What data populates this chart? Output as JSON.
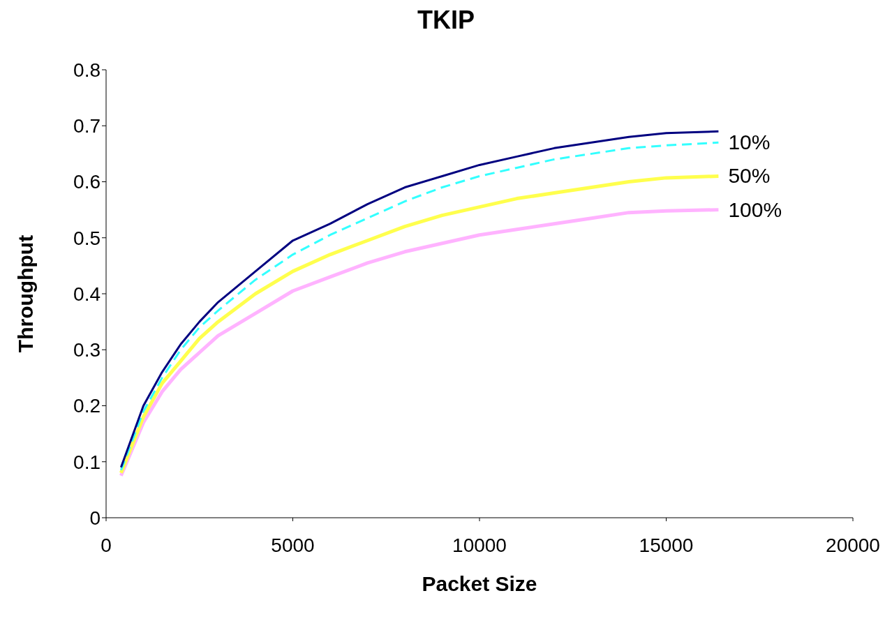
{
  "chart_data": {
    "type": "line",
    "title": "TKIP",
    "xlabel": "Packet Size",
    "ylabel": "Throughput",
    "x": [
      400,
      1000,
      1500,
      2000,
      2500,
      3000,
      4000,
      5000,
      6000,
      7000,
      8000,
      9000,
      10000,
      11000,
      12000,
      13000,
      14000,
      15000,
      16400
    ],
    "series": [
      {
        "color": "#000080",
        "line_style": "solid",
        "values": [
          0.09,
          0.2,
          0.26,
          0.31,
          0.35,
          0.385,
          0.44,
          0.495,
          0.525,
          0.56,
          0.59,
          0.61,
          0.63,
          0.645,
          0.66,
          0.67,
          0.68,
          0.687,
          0.69
        ]
      },
      {
        "name": "10%",
        "color": "#33ffff",
        "line_style": "dashed",
        "values": [
          0.085,
          0.19,
          0.25,
          0.3,
          0.34,
          0.37,
          0.425,
          0.47,
          0.505,
          0.535,
          0.565,
          0.59,
          0.61,
          0.625,
          0.64,
          0.65,
          0.66,
          0.665,
          0.67
        ]
      },
      {
        "name": "50%",
        "color": "#ffff4d",
        "line_style": "solid",
        "values": [
          0.08,
          0.18,
          0.24,
          0.28,
          0.32,
          0.35,
          0.4,
          0.44,
          0.47,
          0.495,
          0.52,
          0.54,
          0.555,
          0.57,
          0.58,
          0.59,
          0.6,
          0.607,
          0.61
        ]
      },
      {
        "name": "100%",
        "color": "#ffb3ff",
        "line_style": "solid",
        "values": [
          0.075,
          0.17,
          0.225,
          0.265,
          0.295,
          0.325,
          0.365,
          0.405,
          0.43,
          0.455,
          0.475,
          0.49,
          0.505,
          0.515,
          0.525,
          0.535,
          0.545,
          0.548,
          0.55
        ]
      }
    ],
    "xlim": [
      0,
      20000
    ],
    "xticks": [
      0,
      5000,
      10000,
      15000,
      20000
    ],
    "ylim": [
      0,
      0.8
    ],
    "yticks": [
      0,
      0.1,
      0.2,
      0.3,
      0.4,
      0.5,
      0.6,
      0.7,
      0.8
    ],
    "grid": false,
    "legend": false,
    "marker": "none"
  }
}
